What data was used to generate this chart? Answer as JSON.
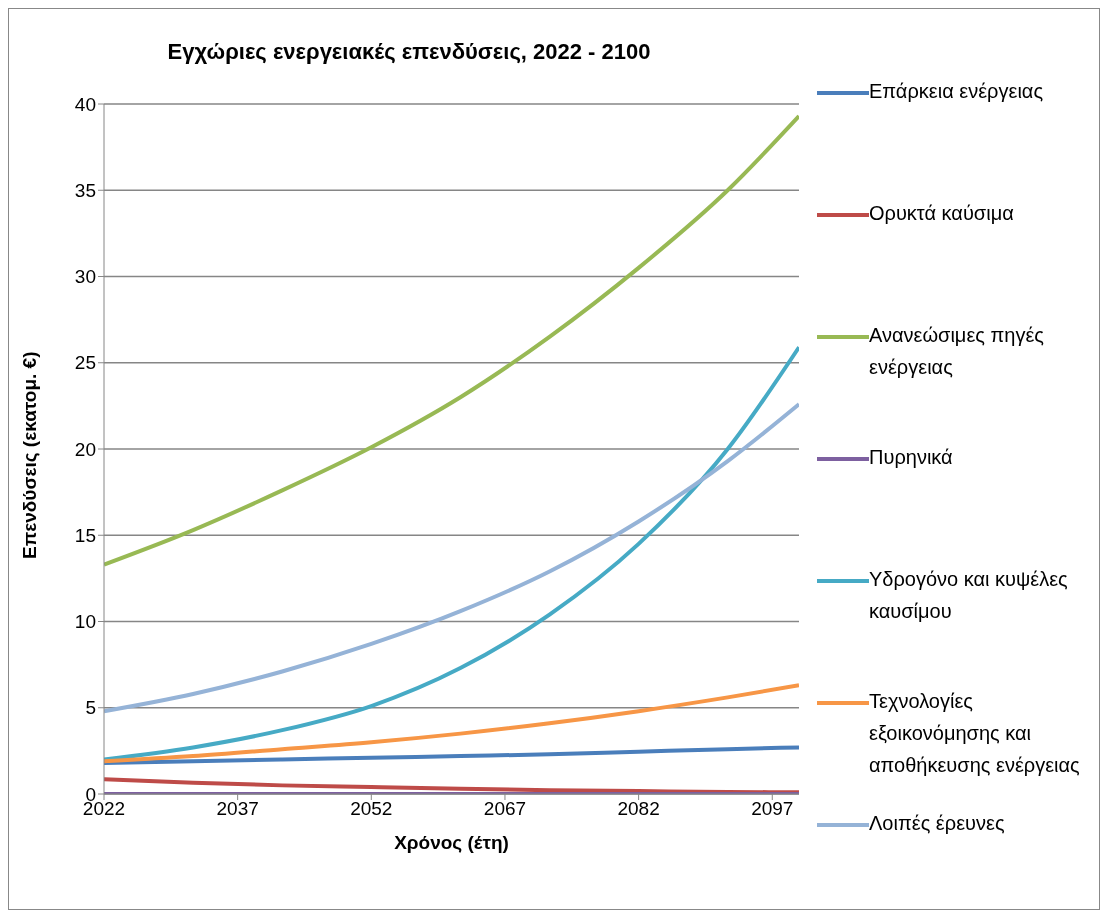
{
  "chart_data": {
    "type": "line",
    "title": "Εγχώριες ενεργειακές επενδύσεις, 2022 - 2100",
    "xlabel": "Χρόνος (έτη)",
    "ylabel": "Επενδύσεις (εκατομ. €)",
    "x": [
      2022,
      2032,
      2042,
      2052,
      2062,
      2072,
      2082,
      2092,
      2100
    ],
    "series": [
      {
        "name": "Επάρκεια ενέργειας",
        "color": "#4a7ebb",
        "values": [
          1.8,
          1.9,
          2.0,
          2.1,
          2.2,
          2.3,
          2.45,
          2.6,
          2.7
        ]
      },
      {
        "name": "Ορυκτά καύσιμα",
        "color": "#be4b48",
        "values": [
          0.85,
          0.65,
          0.5,
          0.4,
          0.3,
          0.22,
          0.17,
          0.12,
          0.1
        ]
      },
      {
        "name": "Ανανεώσιμες πηγές ενέργειας",
        "color": "#98b954",
        "values": [
          13.3,
          15.3,
          17.6,
          20.1,
          23.0,
          26.5,
          30.5,
          35.0,
          39.3
        ]
      },
      {
        "name": "Πυρηνικά",
        "color": "#7d60a0",
        "values": [
          0,
          0,
          0,
          0,
          0,
          0,
          0,
          0,
          0
        ]
      },
      {
        "name": "Υδρογόνο και κυψέλες καυσίμου",
        "color": "#46aac5",
        "values": [
          2.0,
          2.7,
          3.7,
          5.1,
          7.3,
          10.4,
          14.5,
          20.0,
          25.9
        ]
      },
      {
        "name": "Τεχνολογίες εξοικονόμησης και αποθήκευσης ενέργειας",
        "color": "#f79646",
        "values": [
          1.9,
          2.2,
          2.6,
          3.0,
          3.5,
          4.1,
          4.8,
          5.6,
          6.3
        ]
      },
      {
        "name": "Λοιπές έρευνες",
        "color": "#95b3d7",
        "values": [
          4.8,
          5.8,
          7.1,
          8.7,
          10.6,
          12.9,
          15.8,
          19.3,
          22.6
        ]
      }
    ],
    "xlim": [
      2022,
      2100
    ],
    "xticks": [
      2022,
      2037,
      2052,
      2067,
      2082,
      2097
    ],
    "ylim": [
      0,
      40
    ],
    "yticks": [
      0,
      5,
      10,
      15,
      20,
      25,
      30,
      35,
      40
    ],
    "grid": "y",
    "legend": "right",
    "marker": "none",
    "line_style": "solid"
  }
}
